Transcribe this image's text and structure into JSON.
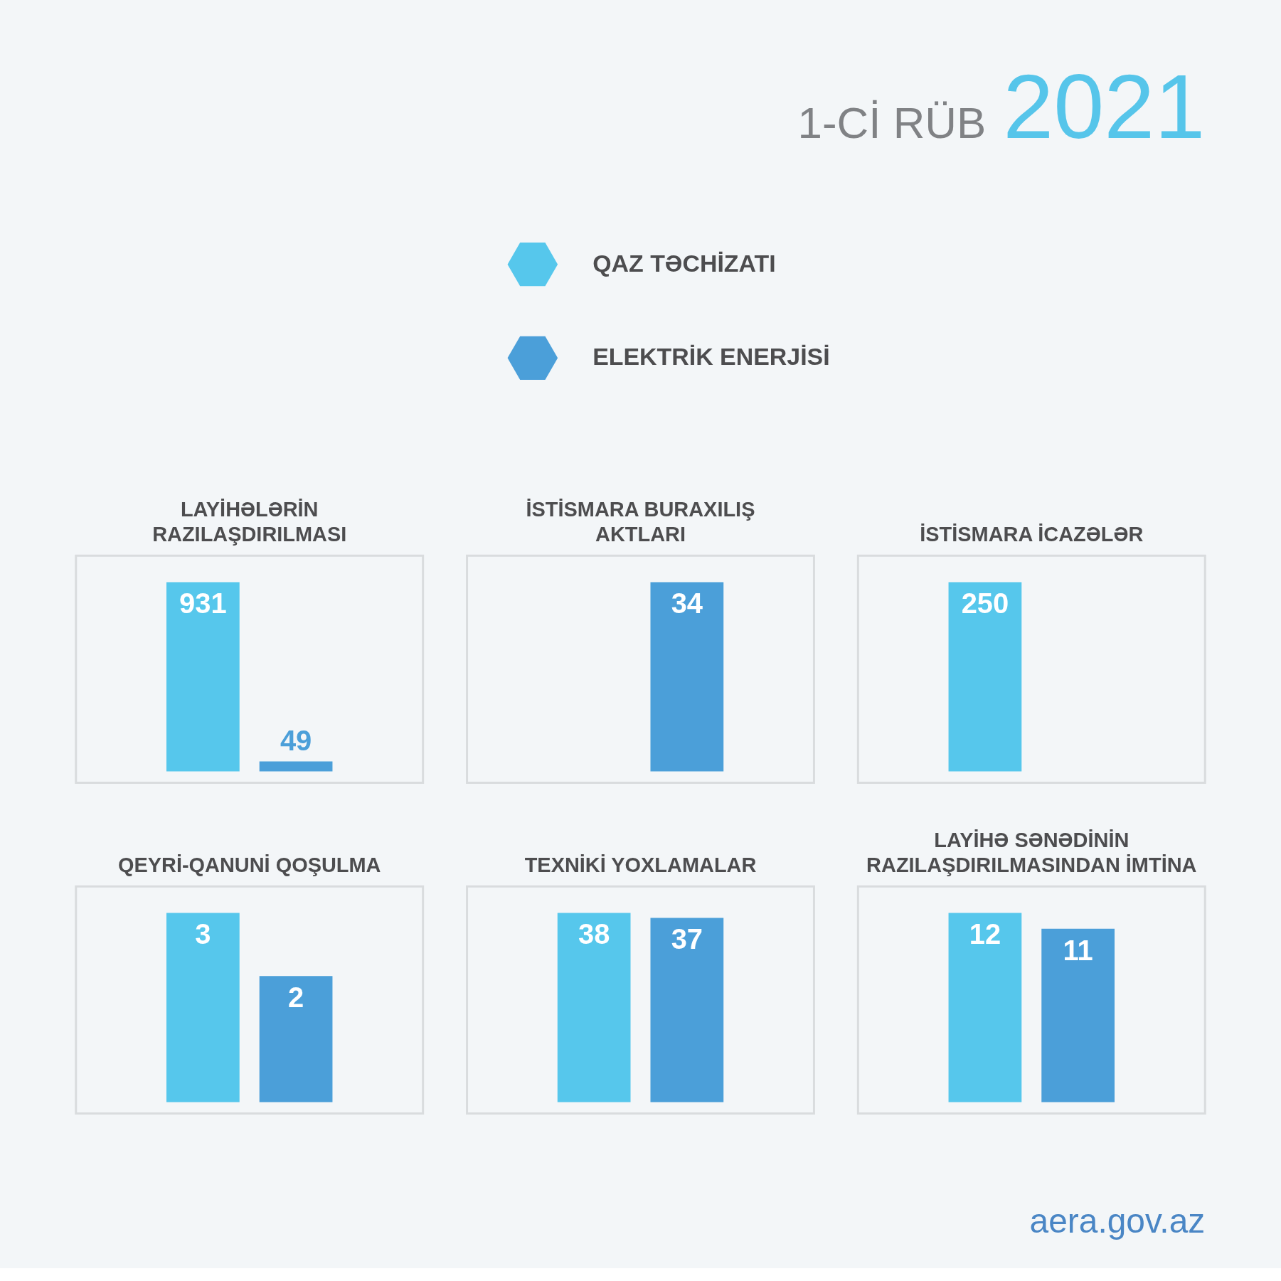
{
  "chart_data": [
    {
      "type": "other",
      "title": "1-Cİ RÜB 2021",
      "annotations": [
        "aera.gov.az"
      ]
    },
    {
      "type": "bar",
      "title": "LAYİHƏLƏRİN\nRAZILAŞDIRILMASI",
      "categories": [
        null
      ],
      "series": [
        {
          "name": "QAZ TƏCHİZATI",
          "color": "#56c7ec",
          "values": [
            931
          ]
        },
        {
          "name": "ELEKTRİK ENERJİSİ",
          "color": "#4b9fd9",
          "values": [
            49
          ]
        }
      ],
      "data_labels": true,
      "legend": "top right",
      "tick_labels": false
    },
    {
      "type": "bar",
      "title": "İSTİSMARA BURAXILIŞ\nAKTLARI",
      "categories": [
        null
      ],
      "series": [
        {
          "color": "#56c7ec",
          "values": [
            null
          ]
        },
        {
          "color": "#4b9fd9",
          "values": [
            34
          ]
        }
      ],
      "data_labels": true,
      "tick_labels": false
    },
    {
      "type": "bar",
      "title": "İSTİSMARA İCAZƏLƏR",
      "categories": [
        null
      ],
      "series": [
        {
          "color": "#56c7ec",
          "values": [
            250
          ]
        },
        {
          "color": "#4b9fd9",
          "values": [
            null
          ]
        }
      ],
      "data_labels": true,
      "tick_labels": false
    },
    {
      "type": "bar",
      "title": "QEYRİ-QANUNİ QOŞULMA",
      "categories": [
        null
      ],
      "series": [
        {
          "color": "#56c7ec",
          "values": [
            3
          ]
        },
        {
          "color": "#4b9fd9",
          "values": [
            2
          ]
        }
      ],
      "data_labels": true,
      "tick_labels": false
    },
    {
      "type": "bar",
      "title": "TEXNİKİ YOXLAMALAR",
      "categories": [
        null
      ],
      "series": [
        {
          "color": "#56c7ec",
          "values": [
            38
          ]
        },
        {
          "color": "#4b9fd9",
          "values": [
            37
          ]
        }
      ],
      "data_labels": true,
      "tick_labels": false
    },
    {
      "type": "bar",
      "title": "LAYİHƏ SƏNƏDİNİN\nRAZILAŞDIRILMASINDAN İMTİNA",
      "categories": [
        null
      ],
      "series": [
        {
          "color": "#56c7ec",
          "values": [
            12
          ]
        },
        {
          "color": "#4b9fd9",
          "values": [
            11
          ]
        }
      ],
      "data_labels": true,
      "tick_labels": false
    }
  ]
}
